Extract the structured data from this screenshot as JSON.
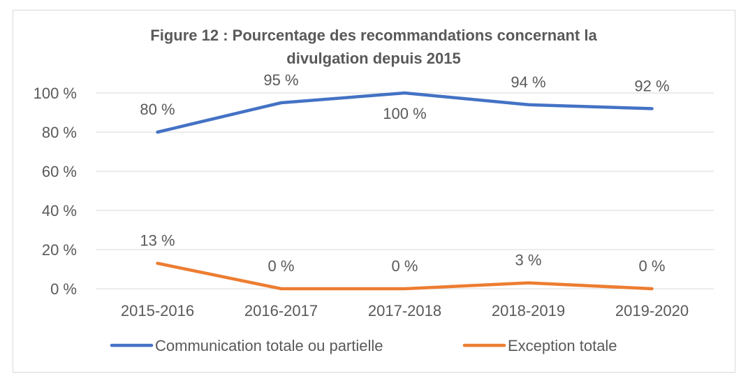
{
  "chart_data": {
    "type": "line",
    "title_lines": [
      "Figure 12 : Pourcentage des recommandations concernant la",
      "divulgation depuis 2015"
    ],
    "categories": [
      "2015-2016",
      "2016-2017",
      "2017-2018",
      "2018-2019",
      "2019-2020"
    ],
    "series": [
      {
        "name": "Communication totale ou partielle",
        "color": "#4472C4",
        "values": [
          80,
          95,
          100,
          94,
          92
        ],
        "labels": [
          "80 %",
          "95 %",
          "100 %",
          "94 %",
          "92 %"
        ]
      },
      {
        "name": "Exception totale",
        "color": "#ED7D31",
        "values": [
          13,
          0,
          0,
          3,
          0
        ],
        "labels": [
          "13 %",
          "0 %",
          "0 %",
          "3 %",
          "0 %"
        ]
      }
    ],
    "ylim": [
      0,
      100
    ],
    "yticks": [
      "0 %",
      "20 %",
      "40 %",
      "60 %",
      "80 %",
      "100 %"
    ],
    "grid": true,
    "legend": "bottom",
    "xlabel": "",
    "ylabel": ""
  }
}
